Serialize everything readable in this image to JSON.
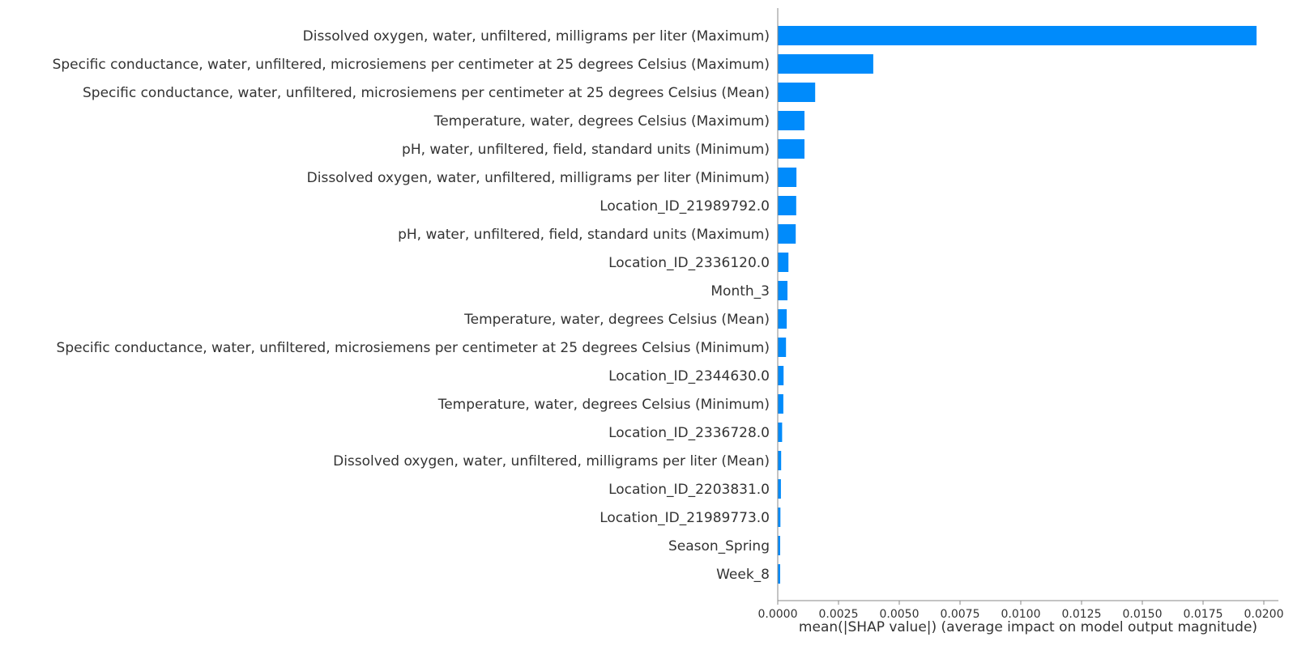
{
  "chart_data": {
    "type": "bar",
    "orientation": "horizontal",
    "title": "",
    "xlabel": "mean(|SHAP value|) (average impact on model output magnitude)",
    "ylabel": "",
    "xlim": [
      0.0,
      0.0206
    ],
    "xticks": [
      0.0,
      0.0025,
      0.005,
      0.0075,
      0.01,
      0.0125,
      0.015,
      0.0175,
      0.02
    ],
    "xtick_labels": [
      "0.0000",
      "0.0025",
      "0.0050",
      "0.0075",
      "0.0100",
      "0.0125",
      "0.0150",
      "0.0175",
      "0.0200"
    ],
    "grid": false,
    "legend": "none",
    "bar_color": "#008bfb",
    "categories": [
      "Dissolved oxygen, water, unfiltered, milligrams per liter (Maximum)",
      "Specific conductance, water, unfiltered, microsiemens per centimeter at 25 degrees Celsius (Maximum)",
      "Specific conductance, water, unfiltered, microsiemens per centimeter at 25 degrees Celsius (Mean)",
      "Temperature, water, degrees Celsius (Maximum)",
      "pH, water, unfiltered, field, standard units (Minimum)",
      "Dissolved oxygen, water, unfiltered, milligrams per liter (Minimum)",
      "Location_ID_21989792.0",
      "pH, water, unfiltered, field, standard units (Maximum)",
      "Location_ID_2336120.0",
      "Month_3",
      "Temperature, water, degrees Celsius (Mean)",
      "Specific conductance, water, unfiltered, microsiemens per centimeter at 25 degrees Celsius (Minimum)",
      "Location_ID_2344630.0",
      "Temperature, water, degrees Celsius (Minimum)",
      "Location_ID_2336728.0",
      "Dissolved oxygen, water, unfiltered, milligrams per liter (Mean)",
      "Location_ID_2203831.0",
      "Location_ID_21989773.0",
      "Season_Spring",
      "Week_8"
    ],
    "values": [
      0.0197,
      0.00393,
      0.00154,
      0.0011,
      0.0011,
      0.00077,
      0.00076,
      0.00074,
      0.00044,
      0.0004,
      0.00037,
      0.00034,
      0.00024,
      0.00023,
      0.00018,
      0.00014,
      0.00013,
      0.00011,
      0.0001,
      0.0001
    ]
  }
}
